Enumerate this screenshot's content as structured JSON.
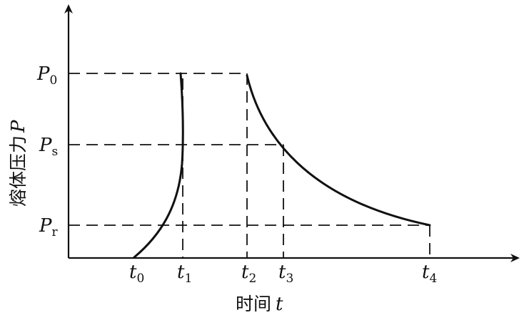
{
  "diagram": {
    "y_axis_label_cjk": "熔体压力",
    "y_axis_label_var": "P",
    "x_axis_label_cjk": "时间",
    "x_axis_label_var": "t",
    "y_levels": [
      {
        "id": "p0",
        "sym": "P",
        "sub": "0"
      },
      {
        "id": "ps",
        "sym": "P",
        "sub": "s"
      },
      {
        "id": "pr",
        "sym": "P",
        "sub": "r"
      }
    ],
    "x_ticks": [
      {
        "id": "t0",
        "sym": "t",
        "sub": "0"
      },
      {
        "id": "t1",
        "sym": "t",
        "sub": "1"
      },
      {
        "id": "t2",
        "sym": "t",
        "sub": "2"
      },
      {
        "id": "t3",
        "sym": "t",
        "sub": "3"
      },
      {
        "id": "t4",
        "sym": "t",
        "sub": "4"
      }
    ]
  }
}
